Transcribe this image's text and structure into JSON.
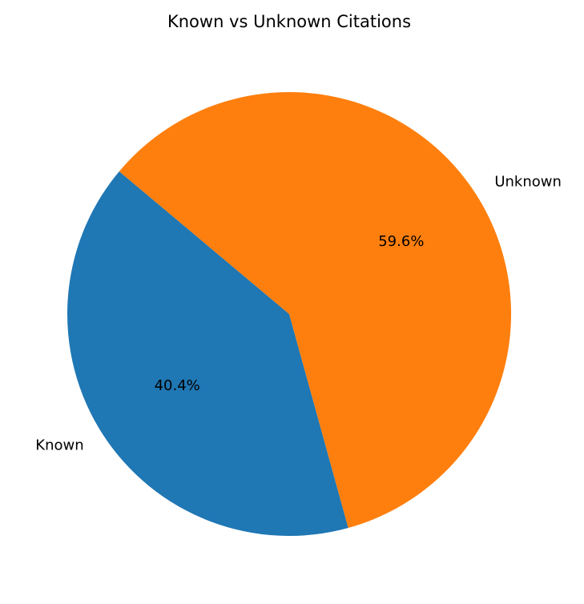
{
  "chart_data": {
    "type": "pie",
    "title": "Known vs Unknown Citations",
    "slices": [
      {
        "label": "Known",
        "value": 40.4,
        "pct_label": "40.4%",
        "color": "#1f77b4"
      },
      {
        "label": "Unknown",
        "value": 59.6,
        "pct_label": "59.6%",
        "color": "#ff7f0e"
      }
    ],
    "start_angle_deg": 140,
    "direction": "counterclockwise",
    "legend": "none"
  }
}
